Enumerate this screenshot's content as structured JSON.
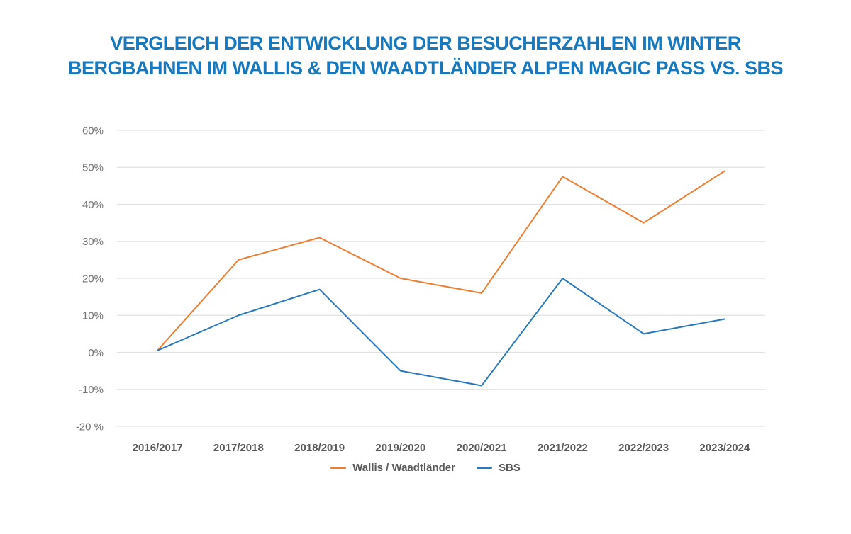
{
  "title": {
    "line1": "VERGLEICH DER ENTWICKLUNG DER BESUCHERZAHLEN IM WINTER",
    "line2": "BERGBAHNEN IM WALLIS & DEN WAADTLÄNDER ALPEN MAGIC PASS VS. SBS",
    "color": "#1878BE"
  },
  "chart_data": {
    "type": "line",
    "categories": [
      "2016/2017",
      "2017/2018",
      "2018/2019",
      "2019/2020",
      "2020/2021",
      "2021/2022",
      "2022/2023",
      "2023/2024"
    ],
    "series": [
      {
        "name": "Wallis / Waadtländer",
        "color": "#ED7D31",
        "values": [
          0.5,
          25,
          31,
          20,
          16,
          47.5,
          35,
          49
        ]
      },
      {
        "name": "SBS",
        "color": "#2878BE",
        "values": [
          0.5,
          10,
          17,
          -5,
          -9,
          20,
          5,
          9
        ]
      }
    ],
    "title": "VERGLEICH DER ENTWICKLUNG DER BESUCHERZAHLEN IM WINTER BERGBAHNEN IM WALLIS & DEN WAADTLÄNDER ALPEN MAGIC PASS VS. SBS",
    "xlabel": "",
    "ylabel": "",
    "ylim": [
      -20,
      60
    ],
    "y_tick_labels": [
      "60%",
      "50%",
      "40%",
      "30%",
      "20%",
      "10%",
      "0%",
      "-10%",
      "-20 %"
    ],
    "y_tick_values": [
      60,
      50,
      40,
      30,
      20,
      10,
      0,
      -10,
      -20
    ],
    "grid": true,
    "legend_position": "bottom"
  },
  "style": {
    "gridline_color": "#E2E2E2",
    "y_tick_color": "#737373",
    "x_tick_color": "#595959",
    "background": "#ffffff"
  }
}
